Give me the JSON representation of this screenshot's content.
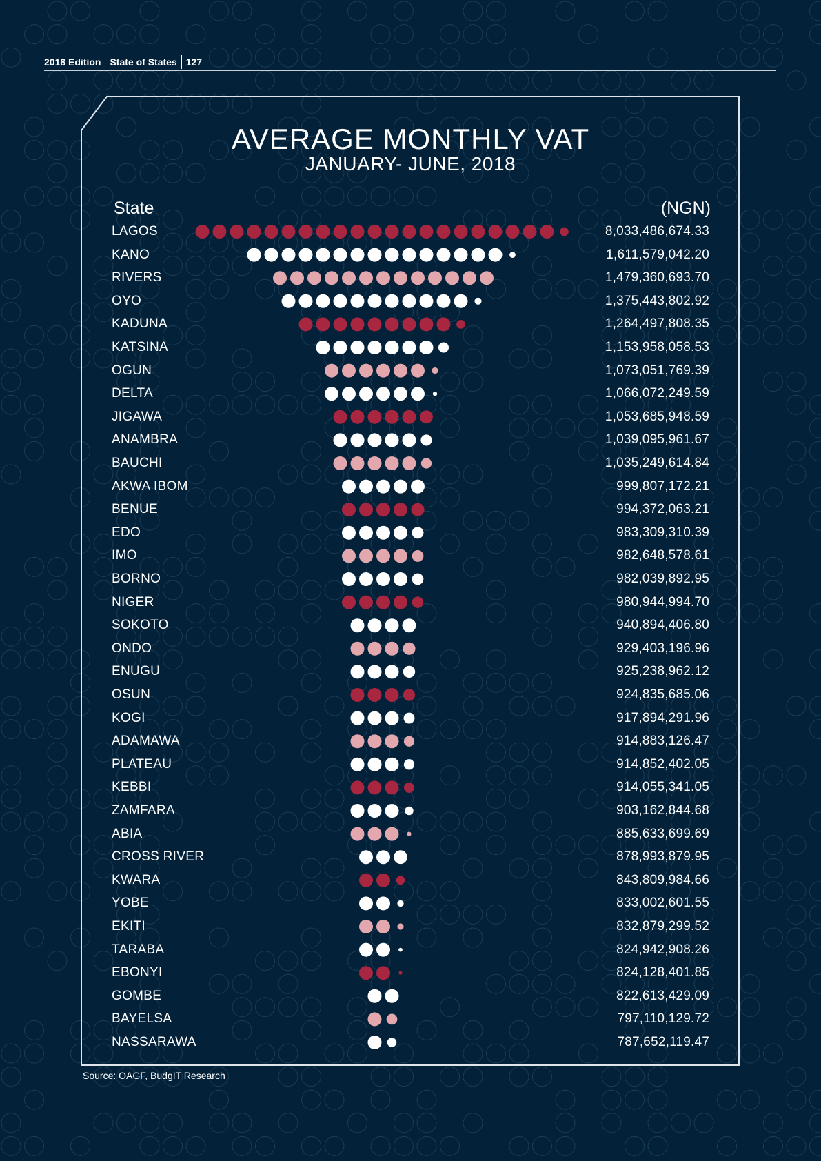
{
  "header": {
    "edition": "2018 Edition",
    "publication": "State of States",
    "page": "127"
  },
  "source": "Source: OAGF, BudgIT Research",
  "colors": {
    "background": "#03223a",
    "dot_white": "#ffffff",
    "dot_pink": "#e3a8ad",
    "dot_red": "#a8263f",
    "background_circle": "#1a3c55"
  },
  "chart_data": {
    "type": "pictograph",
    "title": "AVERAGE MONTHLY VAT",
    "subtitle": "JANUARY- JUNE, 2018",
    "xlabel": "State",
    "ylabel": "(NGN)",
    "rows": [
      {
        "state": "LAGOS",
        "value": 8033486674.33,
        "display": "8,033,486,674.33",
        "color": "red"
      },
      {
        "state": "KANO",
        "value": 1611579042.2,
        "display": "1,611,579,042.20",
        "color": "white"
      },
      {
        "state": "RIVERS",
        "value": 1479360693.7,
        "display": "1,479,360,693.70",
        "color": "pink"
      },
      {
        "state": "OYO",
        "value": 1375443802.92,
        "display": "1,375,443,802.92",
        "color": "white"
      },
      {
        "state": "KADUNA",
        "value": 1264497808.35,
        "display": "1,264,497,808.35",
        "color": "red"
      },
      {
        "state": "KATSINA",
        "value": 1153958058.53,
        "display": "1,153,958,058.53",
        "color": "white"
      },
      {
        "state": "OGUN",
        "value": 1073051769.39,
        "display": "1,073,051,769.39",
        "color": "pink"
      },
      {
        "state": "DELTA",
        "value": 1066072249.59,
        "display": "1,066,072,249.59",
        "color": "white"
      },
      {
        "state": "JIGAWA",
        "value": 1053685948.59,
        "display": "1,053,685,948.59",
        "color": "red"
      },
      {
        "state": "ANAMBRA",
        "value": 1039095961.67,
        "display": "1,039,095,961.67",
        "color": "white"
      },
      {
        "state": "BAUCHI",
        "value": 1035249614.84,
        "display": "1,035,249,614.84",
        "color": "pink"
      },
      {
        "state": "AKWA IBOM",
        "value": 999807172.21,
        "display": "999,807,172.21",
        "color": "white"
      },
      {
        "state": "BENUE",
        "value": 994372063.21,
        "display": "994,372,063.21",
        "color": "red"
      },
      {
        "state": "EDO",
        "value": 983309310.39,
        "display": "983,309,310.39",
        "color": "white"
      },
      {
        "state": "IMO",
        "value": 982648578.61,
        "display": "982,648,578.61",
        "color": "pink"
      },
      {
        "state": "BORNO",
        "value": 982039892.95,
        "display": "982,039,892.95",
        "color": "white"
      },
      {
        "state": "NIGER",
        "value": 980944994.7,
        "display": "980,944,994.70",
        "color": "red"
      },
      {
        "state": "SOKOTO",
        "value": 940894406.8,
        "display": "940,894,406.80",
        "color": "white"
      },
      {
        "state": "ONDO",
        "value": 929403196.96,
        "display": "929,403,196.96",
        "color": "pink"
      },
      {
        "state": "ENUGU",
        "value": 925238962.12,
        "display": "925,238,962.12",
        "color": "white"
      },
      {
        "state": "OSUN",
        "value": 924835685.06,
        "display": "924,835,685.06",
        "color": "red"
      },
      {
        "state": "KOGI",
        "value": 917894291.96,
        "display": "917,894,291.96",
        "color": "white"
      },
      {
        "state": "ADAMAWA",
        "value": 914883126.47,
        "display": "914,883,126.47",
        "color": "pink"
      },
      {
        "state": "PLATEAU",
        "value": 914852402.05,
        "display": "914,852,402.05",
        "color": "white"
      },
      {
        "state": "KEBBI",
        "value": 914055341.05,
        "display": "914,055,341.05",
        "color": "red"
      },
      {
        "state": "ZAMFARA",
        "value": 903162844.68,
        "display": "903,162,844.68",
        "color": "white"
      },
      {
        "state": "ABIA",
        "value": 885633699.69,
        "display": "885,633,699.69",
        "color": "pink"
      },
      {
        "state": "CROSS RIVER",
        "value": 878993879.95,
        "display": "878,993,879.95",
        "color": "white"
      },
      {
        "state": "KWARA",
        "value": 843809984.66,
        "display": "843,809,984.66",
        "color": "red"
      },
      {
        "state": "YOBE",
        "value": 833002601.55,
        "display": "833,002,601.55",
        "color": "white"
      },
      {
        "state": "EKITI",
        "value": 832879299.52,
        "display": "832,879,299.52",
        "color": "pink"
      },
      {
        "state": "TARABA",
        "value": 824942908.26,
        "display": "824,942,908.26",
        "color": "white"
      },
      {
        "state": "EBONYI",
        "value": 824128401.85,
        "display": "824,128,401.85",
        "color": "red"
      },
      {
        "state": "GOMBE",
        "value": 822613429.09,
        "display": "822,613,429.09",
        "color": "white"
      },
      {
        "state": "BAYELSA",
        "value": 797110129.72,
        "display": "797,110,129.72",
        "color": "pink"
      },
      {
        "state": "NASSARAWA",
        "value": 787652119.47,
        "display": "787,652,119.47",
        "color": "white"
      }
    ]
  }
}
